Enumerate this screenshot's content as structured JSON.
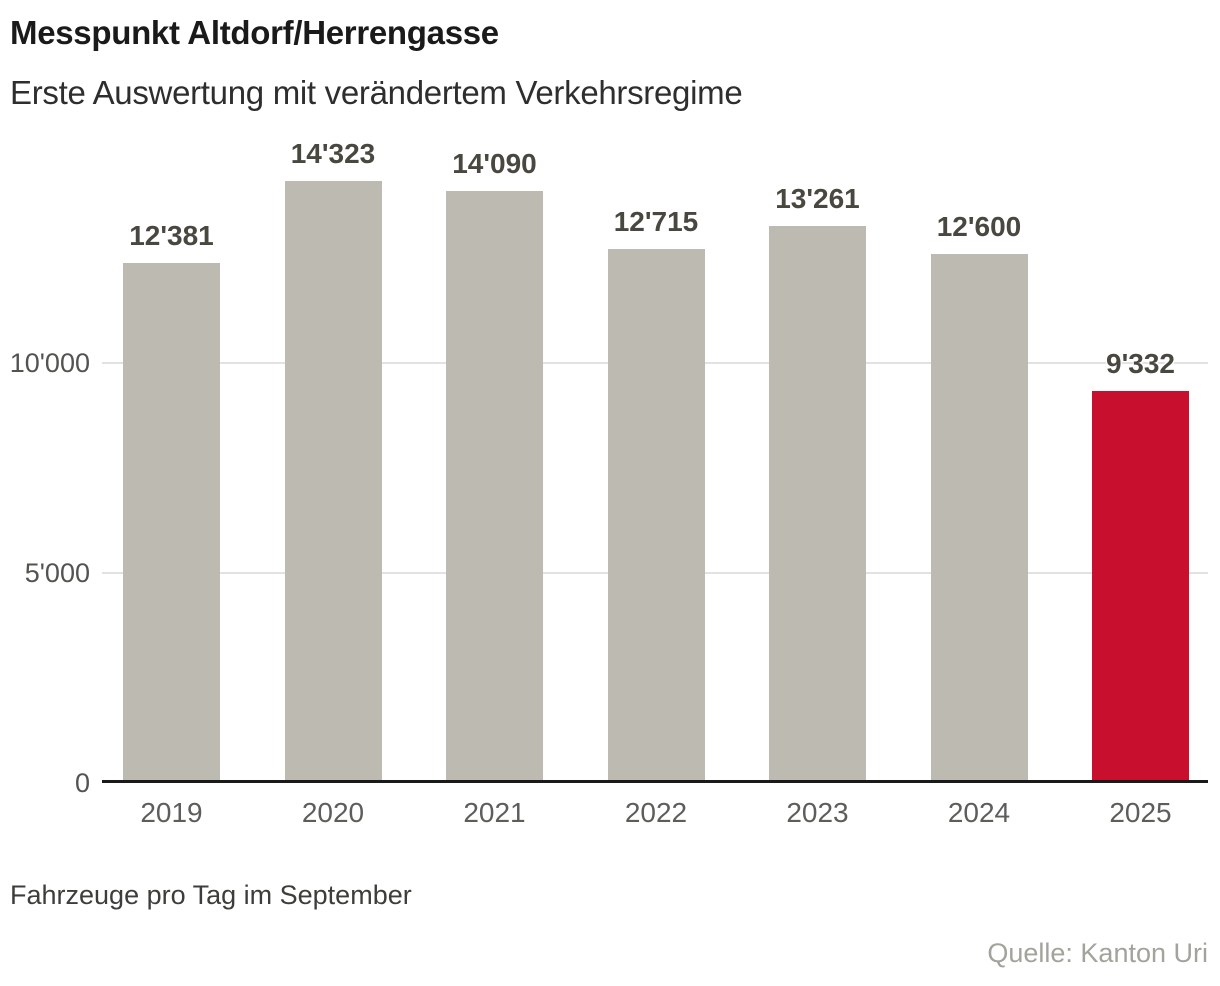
{
  "header": {
    "title": "Messpunkt Altdorf/Herrengasse",
    "subtitle": "Erste Auswertung mit verändertem Verkehrsregime"
  },
  "footer": {
    "footnote": "Fahrzeuge pro Tag im September",
    "source": "Quelle: Kanton Uri"
  },
  "colors": {
    "bar_default": "#bcbab1",
    "bar_highlight": "#c8102e",
    "axis": "#1a1a1a",
    "gridline": "#e2e2e0",
    "background": "#ffffff"
  },
  "chart_data": {
    "type": "bar",
    "title": "Messpunkt Altdorf/Herrengasse",
    "subtitle": "Erste Auswertung mit verändertem Verkehrsregime",
    "categories": [
      "2019",
      "2020",
      "2021",
      "2022",
      "2023",
      "2024",
      "2025"
    ],
    "values": [
      12381,
      14323,
      14090,
      12715,
      13261,
      12600,
      9332
    ],
    "value_labels": [
      "12'381",
      "14'323",
      "14'090",
      "12'715",
      "13'261",
      "12'600",
      "9'332"
    ],
    "highlight_index": 6,
    "highlight_category": "2025",
    "xlabel": "",
    "ylabel": "Fahrzeuge pro Tag im September",
    "ylim": [
      0,
      15000
    ],
    "y_ticks": [
      {
        "value": 0,
        "label": "0"
      },
      {
        "value": 5000,
        "label": "5'000"
      },
      {
        "value": 10000,
        "label": "10'000"
      }
    ],
    "grid": "horizontal",
    "legend": "none",
    "source": "Quelle: Kanton Uri"
  }
}
